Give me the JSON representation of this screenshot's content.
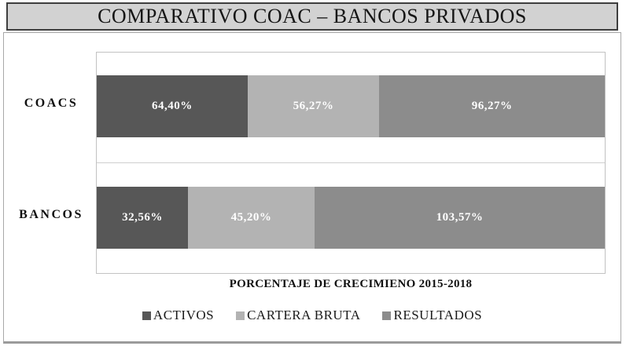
{
  "title": "COMPARATIVO COAC – BANCOS PRIVADOS",
  "chart_data": {
    "type": "bar",
    "orientation": "horizontal",
    "stacking": "100%",
    "title": "COMPARATIVO COAC – BANCOS PRIVADOS",
    "xlabel": "PORCENTAJE DE CRECIMIENO 2015-2018",
    "categories": [
      "COACS",
      "BANCOS"
    ],
    "series": [
      {
        "name": "ACTIVOS",
        "color": "#575757",
        "values": [
          64.4,
          32.56
        ],
        "labels": [
          "64,40%",
          "32,56%"
        ]
      },
      {
        "name": "CARTERA BRUTA",
        "color": "#b3b3b3",
        "values": [
          56.27,
          45.2
        ],
        "labels": [
          "56,27%",
          "45,20%"
        ]
      },
      {
        "name": "RESULTADOS",
        "color": "#8c8c8c",
        "values": [
          96.27,
          103.57
        ],
        "labels": [
          "96,27%",
          "103,57%"
        ]
      }
    ],
    "value_label_color": "#ffffff",
    "legend": [
      "ACTIVOS",
      "CARTERA BRUTA",
      "RESULTADOS"
    ],
    "legend_position": "bottom",
    "grid": false
  },
  "colors": {
    "title_bg": "#d2d2d2",
    "title_border": "#3e3e3e",
    "panel_border": "#a8a8a8",
    "plot_border": "#c2c2c2"
  }
}
